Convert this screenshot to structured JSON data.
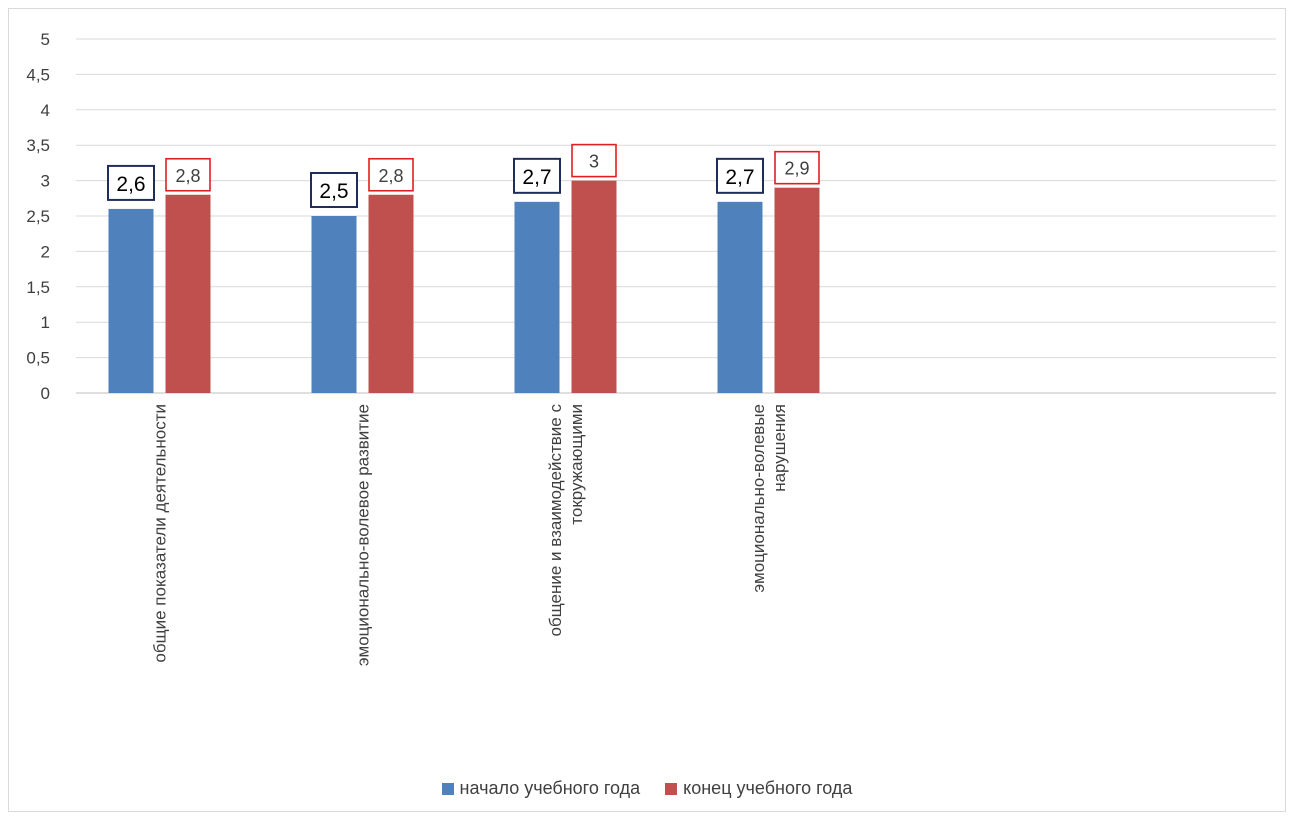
{
  "chart_data": {
    "type": "bar",
    "categories": [
      "общие показатели деятельности",
      "эмоционально-волевое развитие",
      "общение и взаимодействие с токружающими",
      "эмоционально-волевые нарушения"
    ],
    "category_lines": [
      [
        "общие показатели деятельности"
      ],
      [
        "эмоционально-волевое развитие"
      ],
      [
        "общение и взаимодействие с",
        "токружающими"
      ],
      [
        "эмоционально-волевые",
        "нарушения"
      ]
    ],
    "series": [
      {
        "name": "начало учебного года",
        "color": "#4f81bd",
        "label_box_color": "#1f2d5c",
        "values": [
          2.6,
          2.5,
          2.7,
          2.7
        ],
        "labels": [
          "2,6",
          "2,5",
          "2,7",
          "2,7"
        ]
      },
      {
        "name": "конец учебного года",
        "color": "#c0504d",
        "label_box_color": "#e02020",
        "values": [
          2.8,
          2.8,
          3,
          2.9
        ],
        "labels": [
          "2,8",
          "2,8",
          "3",
          "2,9"
        ]
      }
    ],
    "y_ticks": [
      "0",
      "0,5",
      "1",
      "1,5",
      "2",
      "2,5",
      "3",
      "3,5",
      "4",
      "4,5",
      "5"
    ],
    "ylim": [
      0,
      5
    ],
    "grid": true,
    "legend_position": "bottom",
    "title": "",
    "xlabel": "",
    "ylabel": ""
  }
}
